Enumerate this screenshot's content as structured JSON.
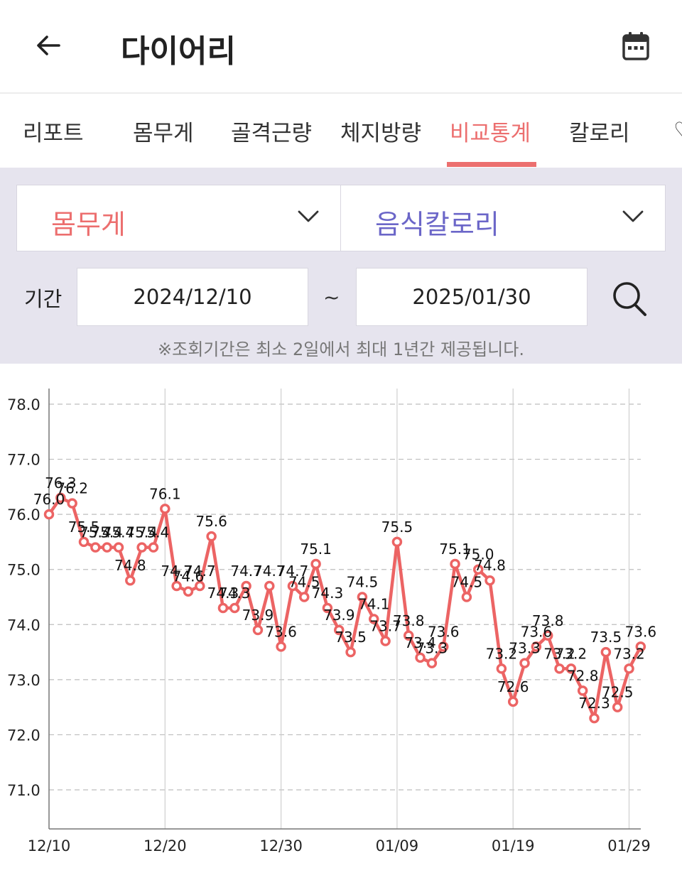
{
  "header": {
    "title": "다이어리",
    "back_icon": "arrow-left-icon",
    "calendar_icon": "calendar-icon"
  },
  "tabs": [
    {
      "label": "리포트",
      "active": false
    },
    {
      "label": "몸무게",
      "active": false
    },
    {
      "label": "골격근량",
      "active": false
    },
    {
      "label": "체지방량",
      "active": false
    },
    {
      "label": "비교통계",
      "active": true
    },
    {
      "label": "칼로리",
      "active": false
    },
    {
      "label": "♡",
      "active": false
    }
  ],
  "filters": {
    "metric_left": {
      "value": "몸무게",
      "color": "#ec6f6f"
    },
    "metric_right": {
      "value": "음식칼로리",
      "color": "#6b66c8"
    },
    "period_label": "기간",
    "start_date": "2024/12/10",
    "separator": "~",
    "end_date": "2025/01/30",
    "search_icon": "search-icon",
    "notice": "※조회기간은 최소 2일에서 최대 1년간 제공됩니다."
  },
  "chart_data": {
    "type": "line",
    "ylim": [
      71.0,
      78.0
    ],
    "yticks": [
      "78.0",
      "77.0",
      "76.0",
      "75.0",
      "74.0",
      "73.0",
      "72.0",
      "71.0"
    ],
    "x_ticks": [
      "12/10",
      "12/20",
      "12/30",
      "01/09",
      "01/19",
      "01/29"
    ],
    "x_start": "12/10",
    "series": [
      {
        "color": "#ec6464",
        "x": [
          "12/10",
          "12/11",
          "12/12",
          "12/13",
          "12/14",
          "12/15",
          "12/16",
          "12/17",
          "12/18",
          "12/19",
          "12/20",
          "12/21",
          "12/22",
          "12/23",
          "12/24",
          "12/25",
          "12/26",
          "12/27",
          "12/28",
          "12/29",
          "12/30",
          "12/31",
          "01/01",
          "01/02",
          "01/03",
          "01/04",
          "01/05",
          "01/06",
          "01/07",
          "01/08",
          "01/09",
          "01/10",
          "01/11",
          "01/12",
          "01/13",
          "01/14",
          "01/15",
          "01/16",
          "01/17",
          "01/18",
          "01/19",
          "01/20",
          "01/21",
          "01/22",
          "01/23",
          "01/24",
          "01/25",
          "01/26",
          "01/27",
          "01/28",
          "01/29",
          "01/30"
        ],
        "values": [
          76.0,
          76.3,
          76.2,
          75.5,
          75.4,
          75.4,
          75.4,
          74.8,
          75.4,
          75.4,
          76.1,
          74.7,
          74.6,
          74.7,
          75.6,
          74.3,
          74.3,
          74.7,
          73.9,
          74.7,
          73.6,
          74.7,
          74.5,
          75.1,
          74.3,
          73.9,
          73.5,
          74.5,
          74.1,
          73.7,
          75.5,
          73.8,
          73.4,
          73.3,
          73.6,
          75.1,
          74.5,
          75.0,
          74.8,
          73.2,
          72.6,
          73.3,
          73.6,
          73.8,
          73.2,
          73.2,
          72.8,
          72.3,
          73.5,
          72.5,
          73.2,
          73.6
        ]
      }
    ]
  }
}
